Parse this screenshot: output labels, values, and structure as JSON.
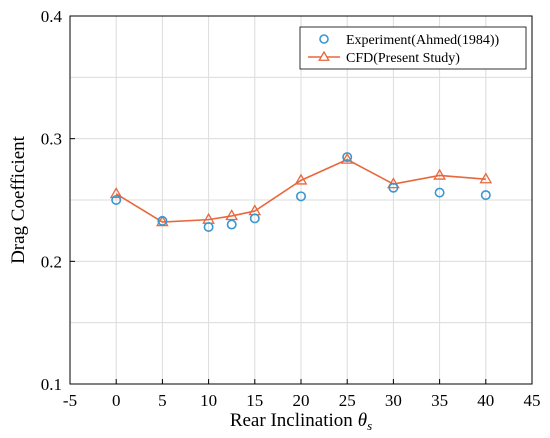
{
  "chart_data": {
    "type": "scatter",
    "title": "",
    "xlabel": "Rear Inclination",
    "xlabel_symbol": "θ",
    "xlabel_subscript": "s",
    "ylabel": "Drag Coefficient",
    "xlim": [
      -5,
      45
    ],
    "ylim": [
      0.1,
      0.4
    ],
    "x_ticks": [
      -5,
      0,
      5,
      10,
      15,
      20,
      25,
      30,
      35,
      40,
      45
    ],
    "y_ticks": [
      0.1,
      0.2,
      0.3,
      0.4
    ],
    "x_tick_labels": [
      "-5",
      "0",
      "5",
      "10",
      "15",
      "20",
      "25",
      "30",
      "35",
      "40",
      "45"
    ],
    "y_tick_labels": [
      "0.1",
      "0.2",
      "0.3",
      "0.4"
    ],
    "grid": true,
    "legend_position": "top-right",
    "series": [
      {
        "name": "Experiment(Ahmed(1984))",
        "style": "circle-markers",
        "color": "#3a97d1",
        "x": [
          0,
          5,
          10,
          12.5,
          15,
          20,
          25,
          30,
          35,
          40
        ],
        "y": [
          0.25,
          0.233,
          0.228,
          0.23,
          0.235,
          0.253,
          0.285,
          0.26,
          0.256,
          0.254
        ]
      },
      {
        "name": "CFD(Present Study)",
        "style": "line-triangle-markers",
        "color": "#e8673c",
        "x": [
          0,
          5,
          10,
          12.5,
          15,
          20,
          25,
          30,
          35,
          40
        ],
        "y": [
          0.255,
          0.232,
          0.234,
          0.237,
          0.241,
          0.266,
          0.283,
          0.263,
          0.27,
          0.267
        ]
      }
    ]
  }
}
